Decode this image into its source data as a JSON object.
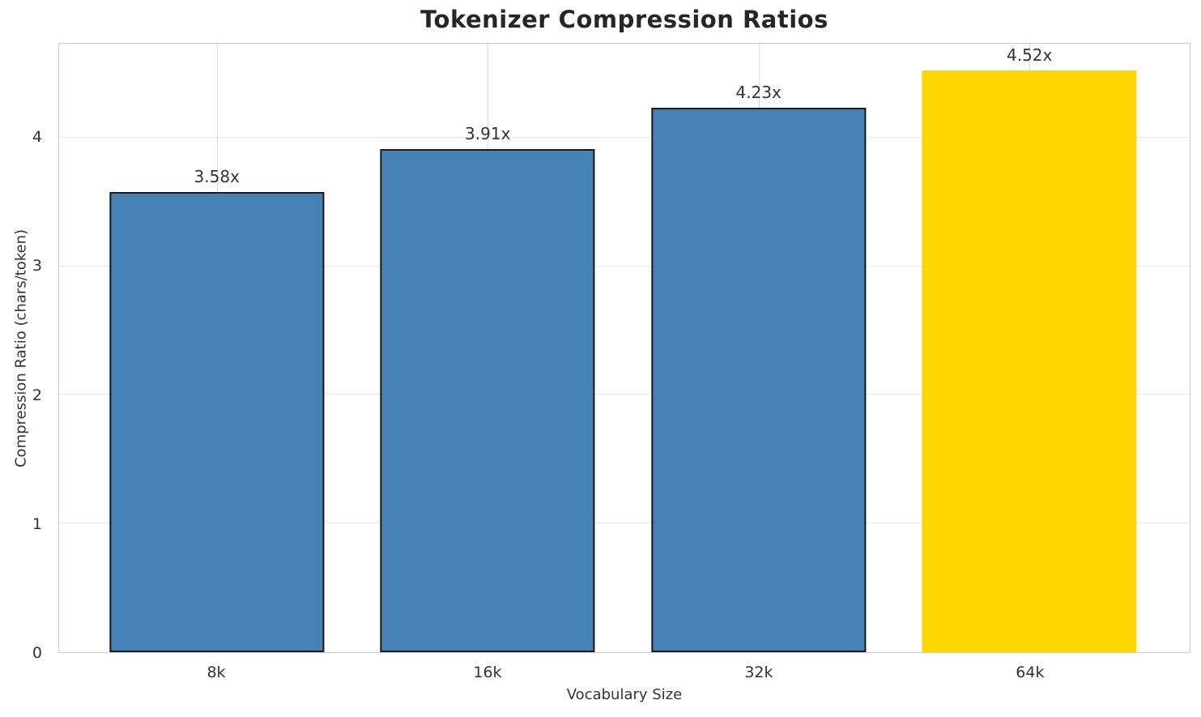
{
  "chart_data": {
    "type": "bar",
    "title": "Tokenizer Compression Ratios",
    "xlabel": "Vocabulary Size",
    "ylabel": "Compression Ratio (chars/token)",
    "categories": [
      "8k",
      "16k",
      "32k",
      "64k"
    ],
    "values": [
      3.58,
      3.91,
      4.23,
      4.52
    ],
    "bar_labels": [
      "3.58x",
      "3.91x",
      "4.23x",
      "4.52x"
    ],
    "yticks": [
      "0",
      "1",
      "2",
      "3",
      "4"
    ],
    "ytick_values": [
      0,
      1,
      2,
      3,
      4
    ],
    "ylim": [
      0,
      4.73
    ],
    "grid": true,
    "legend": "none",
    "highlight_index": 3,
    "colors": {
      "bar": "#4682B4",
      "highlight_bar": "#FFD700",
      "bar_edge": "#1a1a1a",
      "spine": "#cccccc",
      "grid_horizontal": "#e9e9e9",
      "grid_vertical": "#d9d9d9",
      "title_text": "#262626",
      "label_text": "#333333"
    }
  }
}
